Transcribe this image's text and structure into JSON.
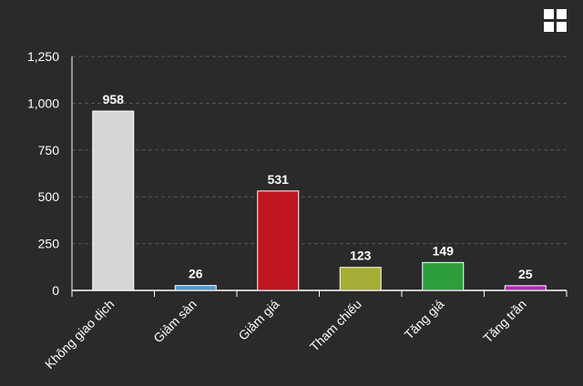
{
  "chart_data": {
    "type": "bar",
    "categories": [
      "Không giao dịch",
      "Giảm sàn",
      "Giảm giá",
      "Tham chiếu",
      "Tăng giá",
      "Tăng trần"
    ],
    "values": [
      958,
      26,
      531,
      123,
      149,
      25
    ],
    "colors": [
      "#d6d6d6",
      "#4f9ccf",
      "#c0161f",
      "#a6ad36",
      "#2d9e3b",
      "#b12ab6"
    ],
    "y_ticks": [
      "0",
      "250",
      "500",
      "750",
      "1,000",
      "1,250"
    ],
    "ylim": [
      0,
      1250
    ],
    "grid": true,
    "title": "",
    "xlabel": "",
    "ylabel": ""
  },
  "colors": {
    "background": "#2a2a2a",
    "axis": "#ffffff",
    "grid": "#555555",
    "text": "#ffffff"
  },
  "icons": {
    "menu": "grid-menu-icon"
  }
}
